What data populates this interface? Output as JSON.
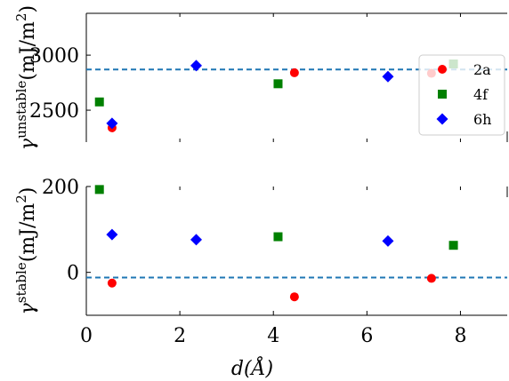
{
  "chart_data": [
    {
      "type": "scatter",
      "panel": "top",
      "ylabel_base": "γ",
      "ylabel_sup": "unstable",
      "ylabel_units": "(mJ/m",
      "ylabel_units_sup": "2",
      "ylabel_units_close": ")",
      "xlim": [
        0,
        9
      ],
      "ylim": [
        2210,
        3380
      ],
      "yticks": [
        2500,
        3000
      ],
      "ytick_labels": [
        "2500",
        "3000"
      ],
      "reference_line": 2870,
      "legend_position": "right",
      "series": [
        {
          "name": "2a",
          "color": "#ff0000",
          "marker": "circle",
          "x": [
            0.55,
            4.45,
            7.38
          ],
          "y": [
            2340,
            2840,
            2835
          ]
        },
        {
          "name": "4f",
          "color": "#008000",
          "marker": "square",
          "x": [
            0.28,
            4.1,
            7.85
          ],
          "y": [
            2575,
            2740,
            2920
          ]
        },
        {
          "name": "6h",
          "color": "#0000ff",
          "marker": "diamond",
          "x": [
            0.55,
            2.35,
            6.45
          ],
          "y": [
            2380,
            2905,
            2805
          ]
        }
      ]
    },
    {
      "type": "scatter",
      "panel": "bottom",
      "ylabel_base": "γ",
      "ylabel_sup": "stable",
      "ylabel_units": "(mJ/m",
      "ylabel_units_sup": "2",
      "ylabel_units_close": ")",
      "xlabel": "d(Å)",
      "xlim": [
        0,
        9
      ],
      "ylim": [
        -100,
        200
      ],
      "xticks": [
        0,
        2,
        4,
        6,
        8
      ],
      "xtick_labels": [
        "0",
        "2",
        "4",
        "6",
        "8"
      ],
      "yticks": [
        0,
        200
      ],
      "ytick_labels": [
        "0",
        "200"
      ],
      "reference_line": -12,
      "series": [
        {
          "name": "2a",
          "color": "#ff0000",
          "marker": "circle",
          "x": [
            0.55,
            4.45,
            7.38
          ],
          "y": [
            -25,
            -57,
            -14
          ]
        },
        {
          "name": "4f",
          "color": "#008000",
          "marker": "square",
          "x": [
            0.28,
            4.1,
            7.85
          ],
          "y": [
            193,
            83,
            63
          ]
        },
        {
          "name": "6h",
          "color": "#0000ff",
          "marker": "diamond",
          "x": [
            0.55,
            2.35,
            6.45
          ],
          "y": [
            88,
            76,
            73
          ]
        }
      ]
    }
  ]
}
